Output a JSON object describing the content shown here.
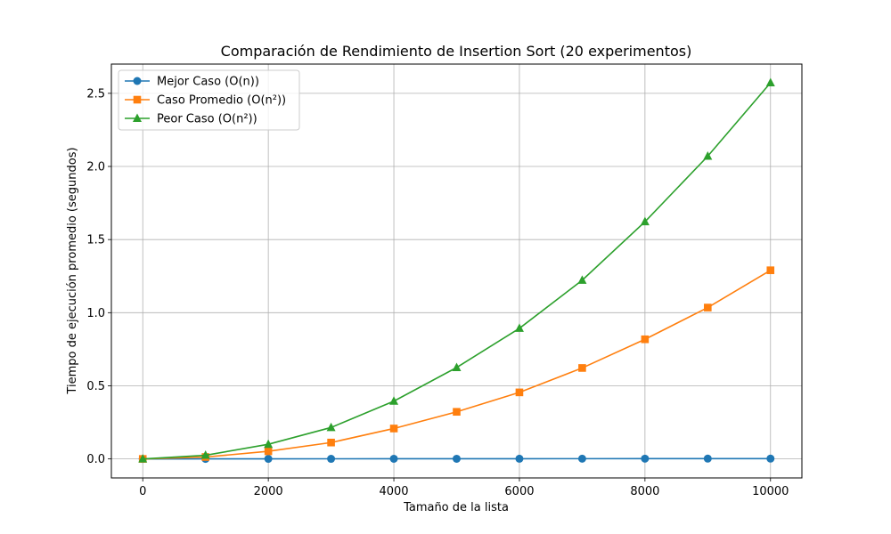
{
  "chart_data": {
    "type": "line",
    "title": "Comparación de Rendimiento de Insertion Sort (20 experimentos)",
    "xlabel": "Tamaño de la lista",
    "ylabel": "Tiempo de ejecución promedio (segundos)",
    "xlim": [
      -500,
      10500
    ],
    "ylim": [
      -0.13,
      2.7
    ],
    "xticks": [
      0,
      2000,
      4000,
      6000,
      8000,
      10000
    ],
    "yticks": [
      0.0,
      0.5,
      1.0,
      1.5,
      2.0,
      2.5
    ],
    "xtick_labels": [
      "0",
      "2000",
      "4000",
      "6000",
      "8000",
      "10000"
    ],
    "ytick_labels": [
      "0.0",
      "0.5",
      "1.0",
      "1.5",
      "2.0",
      "2.5"
    ],
    "grid": true,
    "legend_position": "top-left",
    "x": [
      0,
      1000,
      2000,
      3000,
      4000,
      5000,
      6000,
      7000,
      8000,
      9000,
      10000
    ],
    "series": [
      {
        "name": "Mejor Caso (O(n))",
        "color": "#1f77b4",
        "marker": "circle",
        "values": [
          0.0,
          0.0003,
          0.0005,
          0.0008,
          0.001,
          0.0012,
          0.0014,
          0.0016,
          0.0018,
          0.002,
          0.0022
        ]
      },
      {
        "name": "Caso Promedio (O(n²))",
        "color": "#ff7f0e",
        "marker": "square",
        "values": [
          0.0,
          0.013,
          0.052,
          0.112,
          0.208,
          0.322,
          0.455,
          0.622,
          0.818,
          1.035,
          1.29
        ]
      },
      {
        "name": "Peor Caso (O(n²))",
        "color": "#2ca02c",
        "marker": "triangle",
        "values": [
          0.0,
          0.025,
          0.1,
          0.215,
          0.395,
          0.625,
          0.893,
          1.222,
          1.622,
          2.07,
          2.572
        ]
      }
    ]
  }
}
